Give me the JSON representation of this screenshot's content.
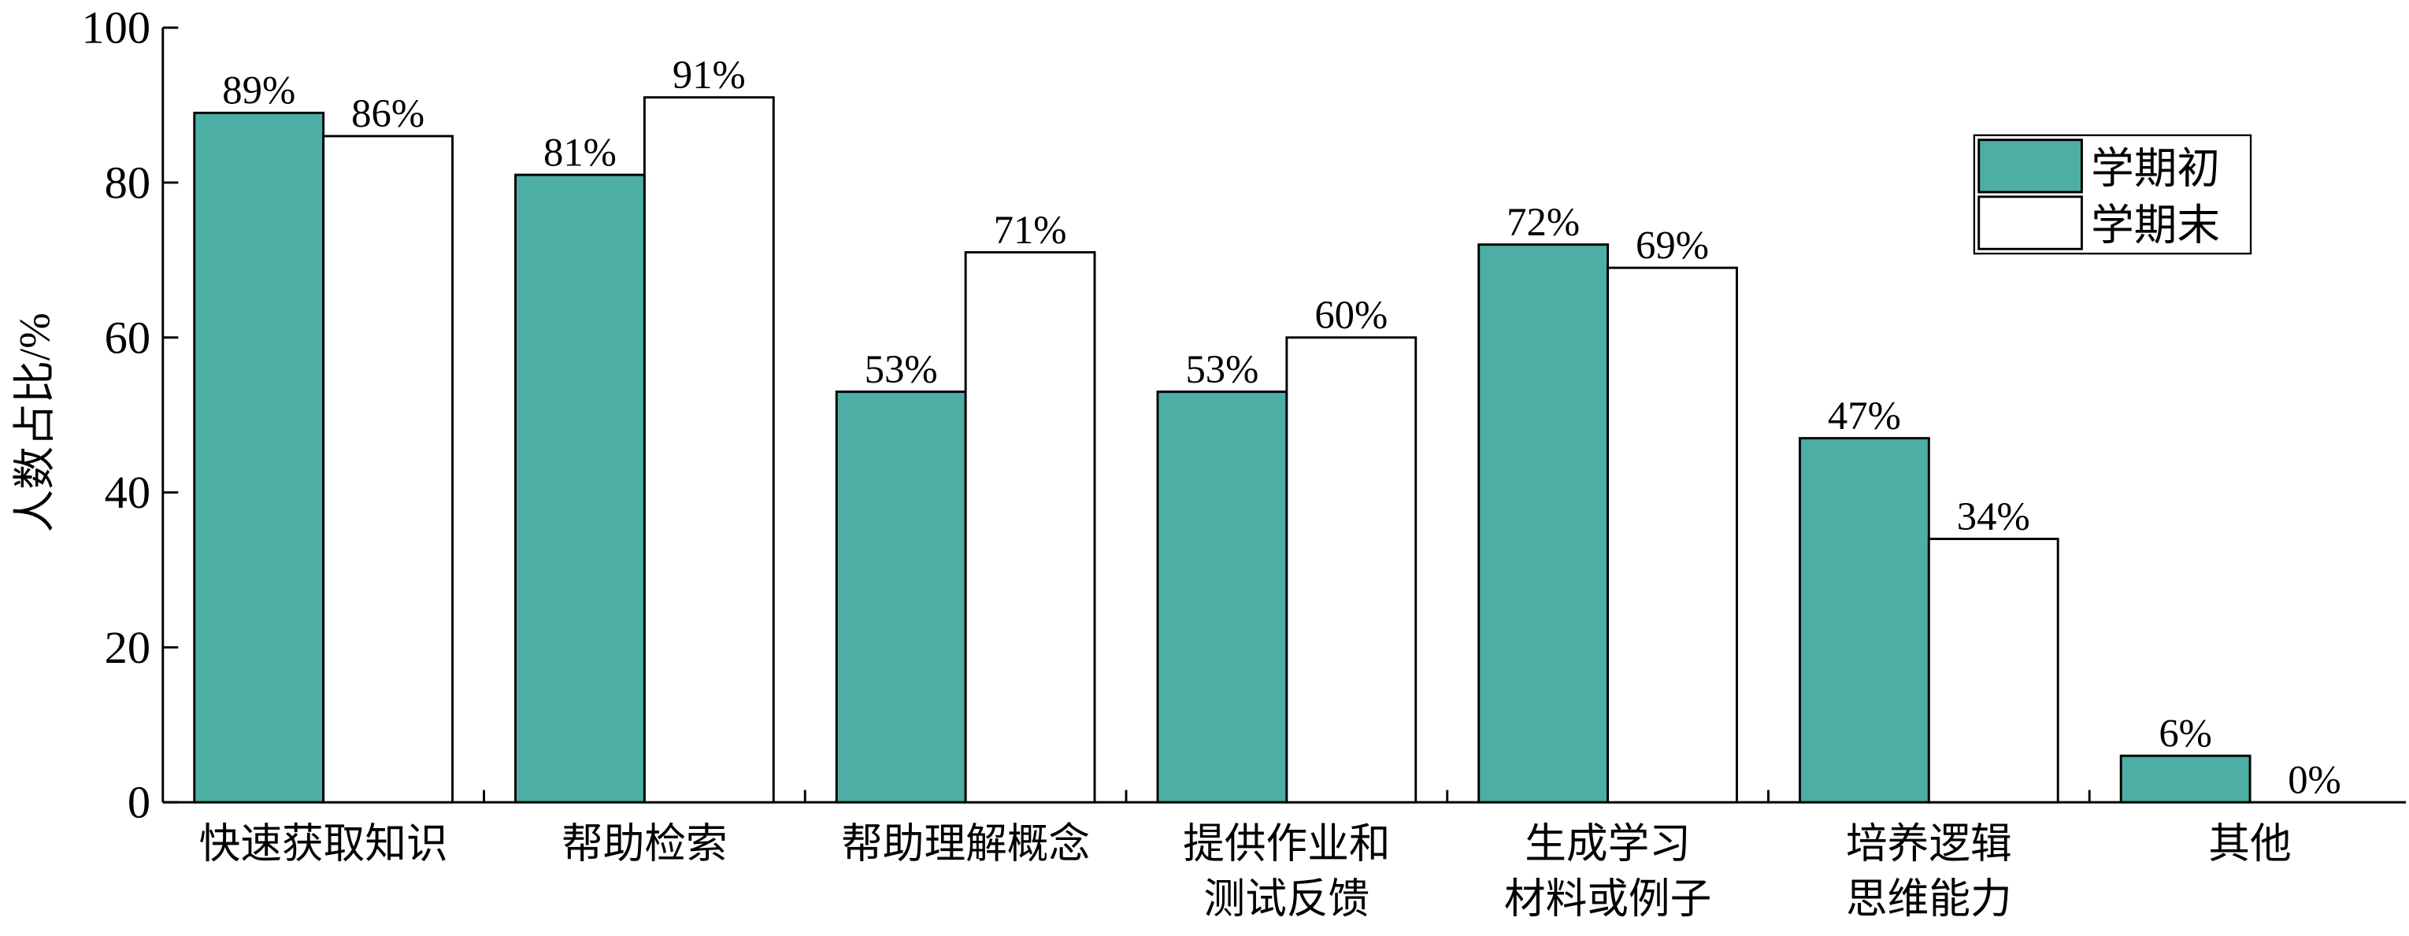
{
  "chart_data": {
    "type": "bar",
    "y_label": "人数占比/%",
    "categories": [
      [
        "快速获取知识"
      ],
      [
        "帮助检索"
      ],
      [
        "帮助理解概念"
      ],
      [
        "提供作业和",
        "测试反馈"
      ],
      [
        "生成学习",
        "材料或例子"
      ],
      [
        "培养逻辑",
        "思维能力"
      ],
      [
        "其他"
      ]
    ],
    "series": [
      {
        "name": "学期初",
        "color": "#4daea3",
        "values": [
          89,
          81,
          53,
          53,
          72,
          47,
          6
        ],
        "value_labels": [
          "89%",
          "81%",
          "53%",
          "53%",
          "72%",
          "47%",
          "6%"
        ]
      },
      {
        "name": "学期末",
        "color": "#ffffff",
        "values": [
          86,
          91,
          71,
          60,
          69,
          34,
          0
        ],
        "value_labels": [
          "86%",
          "91%",
          "71%",
          "60%",
          "69%",
          "34%",
          "0%"
        ]
      }
    ],
    "ylim": [
      0,
      100
    ],
    "yticks": [
      0,
      20,
      40,
      60,
      80,
      100
    ],
    "grid": false,
    "legend": "upper right"
  }
}
